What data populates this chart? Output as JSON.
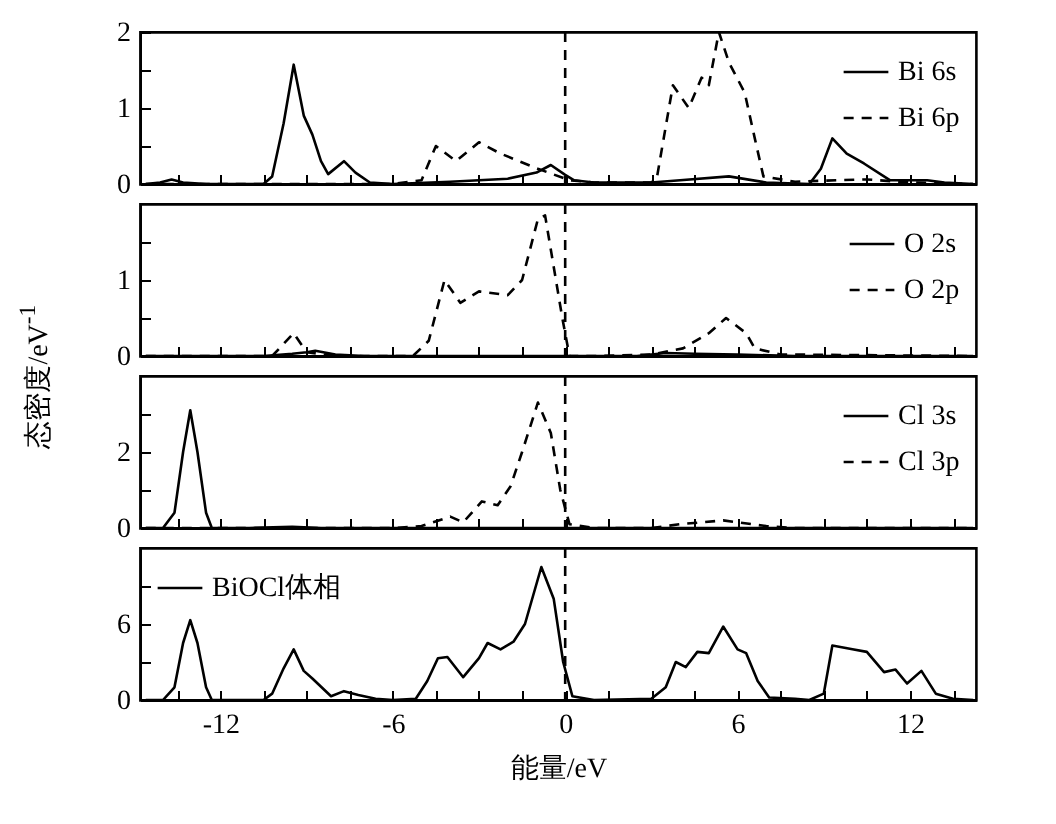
{
  "chart_data": [
    {
      "type": "line",
      "xlim": [
        -14.8,
        14.3
      ],
      "ylim": [
        0,
        2
      ],
      "yticks": [
        0,
        {
          "value": 0.5,
          "label": null
        },
        1,
        {
          "value": 1.5,
          "label": null
        },
        2
      ],
      "xticks": [
        {
          "value": -13.5,
          "label": null
        },
        {
          "value": -12,
          "label": null
        },
        {
          "value": -10.5,
          "label": null
        },
        {
          "value": -9,
          "label": null
        },
        {
          "value": -7.5,
          "label": null
        },
        {
          "value": -6,
          "label": null
        },
        {
          "value": -4.5,
          "label": null
        },
        {
          "value": -3,
          "label": null
        },
        {
          "value": -1.5,
          "label": null
        },
        {
          "value": 0,
          "label": null
        },
        {
          "value": 1.5,
          "label": null
        },
        {
          "value": 3,
          "label": null
        },
        {
          "value": 4.5,
          "label": null
        },
        {
          "value": 6,
          "label": null
        },
        {
          "value": 7.5,
          "label": null
        },
        {
          "value": 9,
          "label": null
        },
        {
          "value": 10.5,
          "label": null
        },
        {
          "value": 12,
          "label": null
        },
        {
          "value": 13.5,
          "label": null
        }
      ],
      "tick_labels": "y",
      "legend": "top right",
      "ref_lines": [
        {
          "axis": "x",
          "value": 0,
          "line_style": "dashed",
          "color": "#000000"
        }
      ],
      "series": [
        {
          "name": "Bi 6s",
          "color": "#000000",
          "line_style": "solid",
          "x": [
            -14.6,
            -14.1,
            -13.7,
            -13.3,
            -12.5,
            -10.5,
            -10.2,
            -9.8,
            -9.45,
            -9.1,
            -8.8,
            -8.5,
            -8.25,
            -7.7,
            -7.3,
            -6.8,
            -6.0,
            -4.0,
            -2.0,
            -1.0,
            -0.5,
            0.0,
            0.3,
            1.0,
            3.0,
            4.0,
            5.7,
            7.0,
            8.5,
            8.9,
            9.3,
            9.8,
            10.4,
            11.3,
            12.0,
            12.6,
            13.2,
            14.2
          ],
          "values": [
            0.0,
            0.02,
            0.06,
            0.02,
            0.0,
            0.0,
            0.1,
            0.8,
            1.57,
            0.9,
            0.65,
            0.3,
            0.13,
            0.3,
            0.15,
            0.02,
            0.0,
            0.03,
            0.07,
            0.15,
            0.25,
            0.12,
            0.05,
            0.02,
            0.02,
            0.05,
            0.1,
            0.02,
            0.0,
            0.2,
            0.6,
            0.4,
            0.27,
            0.05,
            0.05,
            0.05,
            0.02,
            0.0
          ]
        },
        {
          "name": "Bi 6p",
          "color": "#000000",
          "line_style": "dashed",
          "x": [
            -14.6,
            -6.0,
            -5.0,
            -4.5,
            -3.8,
            -3.0,
            -2.25,
            -0.95,
            0.15,
            1.0,
            3.0,
            3.2,
            3.75,
            4.3,
            4.75,
            5.0,
            5.35,
            5.7,
            6.25,
            6.6,
            6.9,
            8.0,
            9.5,
            10.5,
            12.0,
            14.2
          ],
          "values": [
            0.0,
            0.0,
            0.05,
            0.5,
            0.3,
            0.55,
            0.4,
            0.2,
            0.05,
            0.02,
            0.02,
            0.1,
            1.3,
            1.0,
            1.4,
            1.3,
            2.0,
            1.6,
            1.2,
            0.6,
            0.1,
            0.03,
            0.05,
            0.06,
            0.02,
            0.0
          ]
        }
      ]
    },
    {
      "type": "line",
      "xlim": [
        -14.8,
        14.3
      ],
      "ylim": [
        0,
        2
      ],
      "yticks": [
        0,
        {
          "value": 0.5,
          "label": null
        },
        1,
        {
          "value": 1.5,
          "label": null
        }
      ],
      "xticks": [
        {
          "value": -13.5,
          "label": null
        },
        {
          "value": -12,
          "label": null
        },
        {
          "value": -10.5,
          "label": null
        },
        {
          "value": -9,
          "label": null
        },
        {
          "value": -7.5,
          "label": null
        },
        {
          "value": -6,
          "label": null
        },
        {
          "value": -4.5,
          "label": null
        },
        {
          "value": -3,
          "label": null
        },
        {
          "value": -1.5,
          "label": null
        },
        {
          "value": 0,
          "label": null
        },
        {
          "value": 1.5,
          "label": null
        },
        {
          "value": 3,
          "label": null
        },
        {
          "value": 4.5,
          "label": null
        },
        {
          "value": 6,
          "label": null
        },
        {
          "value": 7.5,
          "label": null
        },
        {
          "value": 9,
          "label": null
        },
        {
          "value": 10.5,
          "label": null
        },
        {
          "value": 12,
          "label": null
        },
        {
          "value": 13.5,
          "label": null
        }
      ],
      "tick_labels": "y",
      "legend": "top right",
      "ref_lines": [
        {
          "axis": "x",
          "value": 0,
          "line_style": "dashed",
          "color": "#000000"
        }
      ],
      "series": [
        {
          "name": "O 2s",
          "color": "#000000",
          "line_style": "solid",
          "x": [
            -14.6,
            -10.5,
            -9.5,
            -9.0,
            -8.7,
            -8.0,
            -7.0,
            2.5,
            3.5,
            4.5,
            6.0,
            8.0,
            14.2
          ],
          "values": [
            0.0,
            0.0,
            0.03,
            0.05,
            0.07,
            0.02,
            0.0,
            0.0,
            0.04,
            0.03,
            0.02,
            0.0,
            0.0
          ]
        },
        {
          "name": "O 2p",
          "color": "#000000",
          "line_style": "dashed",
          "x": [
            -14.6,
            -10.2,
            -9.45,
            -9.0,
            -8.0,
            -5.3,
            -4.75,
            -4.2,
            -3.65,
            -3.0,
            -2.0,
            -1.5,
            -0.95,
            -0.7,
            -0.1,
            0.15,
            1.0,
            3.0,
            4.1,
            5.0,
            5.6,
            6.3,
            6.6,
            7.5,
            14.2
          ],
          "values": [
            0.0,
            0.0,
            0.3,
            0.05,
            0.0,
            0.0,
            0.2,
            1.0,
            0.7,
            0.85,
            0.8,
            1.0,
            1.8,
            1.85,
            0.5,
            0.0,
            0.0,
            0.02,
            0.1,
            0.3,
            0.5,
            0.3,
            0.1,
            0.02,
            0.0
          ]
        }
      ]
    },
    {
      "type": "line",
      "xlim": [
        -14.8,
        14.3
      ],
      "ylim": [
        0,
        4
      ],
      "yticks": [
        0,
        {
          "value": 1,
          "label": null
        },
        2,
        {
          "value": 3,
          "label": null
        }
      ],
      "xticks": [
        {
          "value": -13.5,
          "label": null
        },
        {
          "value": -12,
          "label": null
        },
        {
          "value": -10.5,
          "label": null
        },
        {
          "value": -9,
          "label": null
        },
        {
          "value": -7.5,
          "label": null
        },
        {
          "value": -6,
          "label": null
        },
        {
          "value": -4.5,
          "label": null
        },
        {
          "value": -3,
          "label": null
        },
        {
          "value": -1.5,
          "label": null
        },
        {
          "value": 0,
          "label": null
        },
        {
          "value": 1.5,
          "label": null
        },
        {
          "value": 3,
          "label": null
        },
        {
          "value": 4.5,
          "label": null
        },
        {
          "value": 6,
          "label": null
        },
        {
          "value": 7.5,
          "label": null
        },
        {
          "value": 9,
          "label": null
        },
        {
          "value": 10.5,
          "label": null
        },
        {
          "value": 12,
          "label": null
        },
        {
          "value": 13.5,
          "label": null
        }
      ],
      "tick_labels": "y",
      "legend": "top right",
      "ref_lines": [
        {
          "axis": "x",
          "value": 0,
          "line_style": "dashed",
          "color": "#000000"
        }
      ],
      "series": [
        {
          "name": "Cl 3s",
          "color": "#000000",
          "line_style": "solid",
          "x": [
            -14.6,
            -14.0,
            -13.6,
            -13.3,
            -13.05,
            -12.8,
            -12.5,
            -12.3,
            -11.0,
            -9.5,
            -8.5,
            14.2
          ],
          "values": [
            0.0,
            0.0,
            0.4,
            2.0,
            3.1,
            2.0,
            0.4,
            0.0,
            0.0,
            0.03,
            0.0,
            0.0
          ]
        },
        {
          "name": "Cl 3p",
          "color": "#000000",
          "line_style": "dashed",
          "x": [
            -14.6,
            -6.0,
            -5.0,
            -4.0,
            -3.55,
            -2.9,
            -2.35,
            -1.9,
            -1.5,
            -0.95,
            -0.5,
            -0.17,
            0.15,
            1.0,
            3.0,
            4.0,
            5.5,
            7.0,
            8.0,
            14.2
          ],
          "values": [
            0.0,
            0.0,
            0.05,
            0.3,
            0.15,
            0.7,
            0.6,
            1.1,
            2.0,
            3.3,
            2.5,
            1.0,
            0.1,
            0.0,
            0.0,
            0.1,
            0.2,
            0.05,
            0.0,
            0.0
          ]
        }
      ]
    },
    {
      "type": "line",
      "xlim": [
        -14.8,
        14.3
      ],
      "ylim": [
        0,
        12
      ],
      "yticks": [
        0,
        {
          "value": 3,
          "label": null
        },
        6,
        {
          "value": 9,
          "label": null
        }
      ],
      "xticks": [
        {
          "value": -13.5,
          "label": null
        },
        -12,
        {
          "value": -10.5,
          "label": null
        },
        {
          "value": -9,
          "label": null
        },
        {
          "value": -7.5,
          "label": null
        },
        -6,
        {
          "value": -4.5,
          "label": null
        },
        {
          "value": -3,
          "label": null
        },
        {
          "value": -1.5,
          "label": null
        },
        0,
        {
          "value": 1.5,
          "label": null
        },
        {
          "value": 3,
          "label": null
        },
        {
          "value": 4.5,
          "label": null
        },
        6,
        {
          "value": 7.5,
          "label": null
        },
        {
          "value": 9,
          "label": null
        },
        {
          "value": 10.5,
          "label": null
        },
        12,
        {
          "value": 13.5,
          "label": null
        }
      ],
      "xlabel": "能量/eV",
      "ylabel": "态密度/eV$^{-1}$",
      "legend": "top left",
      "ref_lines": [
        {
          "axis": "x",
          "value": 0,
          "line_style": "dashed",
          "color": "#000000"
        }
      ],
      "series": [
        {
          "name": "BiOCl体相",
          "color": "#000000",
          "line_style": "solid",
          "x": [
            -14.6,
            -14.0,
            -13.6,
            -13.3,
            -13.05,
            -12.8,
            -12.5,
            -12.3,
            -10.5,
            -10.2,
            -9.8,
            -9.45,
            -9.1,
            -8.8,
            -8.15,
            -7.7,
            -7.2,
            -6.6,
            -6.0,
            -5.2,
            -4.8,
            -4.43,
            -4.1,
            -3.55,
            -3.0,
            -2.7,
            -2.25,
            -1.8,
            -1.4,
            -0.83,
            -0.4,
            -0.07,
            0.25,
            1.0,
            3.0,
            3.5,
            3.85,
            4.2,
            4.6,
            5.0,
            5.5,
            6.0,
            6.3,
            6.7,
            7.1,
            8.0,
            8.5,
            9.0,
            9.3,
            10.0,
            10.5,
            11.1,
            11.5,
            11.9,
            12.4,
            12.9,
            13.5,
            14.2
          ],
          "values": [
            0.0,
            0.0,
            1.0,
            4.5,
            6.3,
            4.5,
            1.0,
            0.0,
            0.0,
            0.5,
            2.5,
            4.0,
            2.3,
            1.7,
            0.3,
            0.7,
            0.4,
            0.1,
            0.0,
            0.1,
            1.5,
            3.3,
            3.4,
            1.8,
            3.3,
            4.5,
            4.0,
            4.6,
            6.0,
            10.5,
            8.0,
            3.0,
            0.3,
            0.0,
            0.1,
            1.0,
            3.0,
            2.6,
            3.8,
            3.7,
            5.8,
            4.0,
            3.7,
            1.5,
            0.2,
            0.1,
            0.0,
            0.5,
            4.3,
            4.0,
            3.8,
            2.2,
            2.4,
            1.3,
            2.3,
            0.5,
            0.1,
            0.0
          ]
        }
      ]
    }
  ]
}
